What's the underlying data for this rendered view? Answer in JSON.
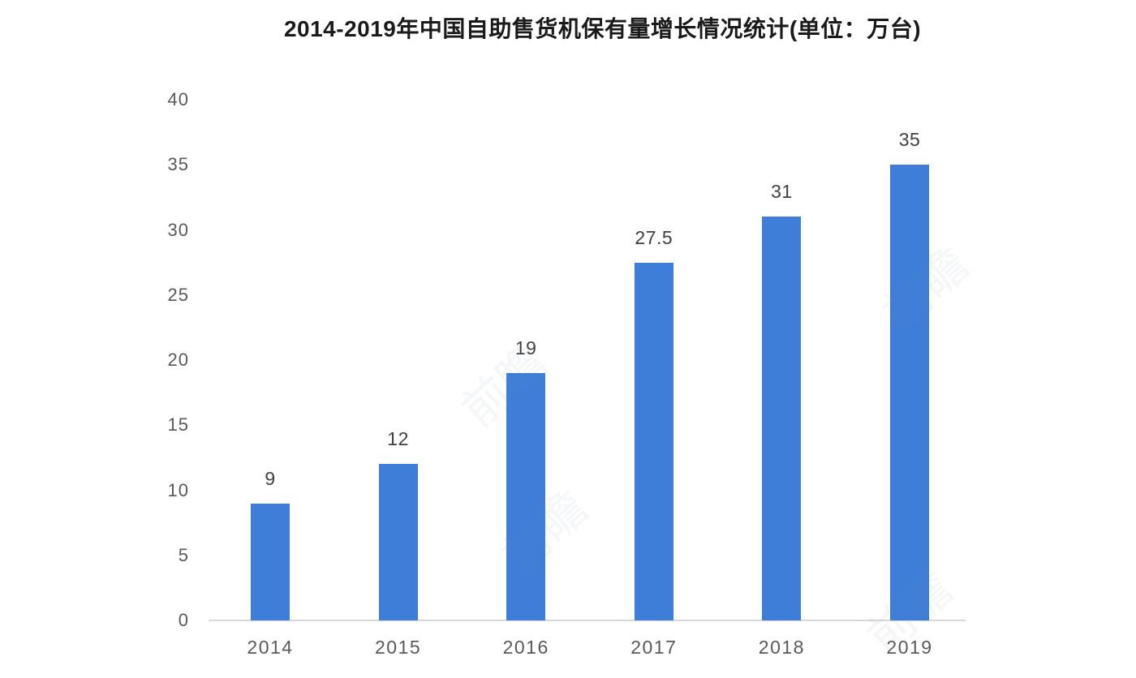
{
  "chart_data": {
    "type": "bar",
    "title": "2014-2019年中国自助售货机保有量增长情况统计(单位：万台)",
    "categories": [
      "2014",
      "2015",
      "2016",
      "2017",
      "2018",
      "2019"
    ],
    "values": [
      9,
      12,
      19,
      27.5,
      31,
      35
    ],
    "value_labels": [
      "9",
      "12",
      "19",
      "27.5",
      "31",
      "35"
    ],
    "xlabel": "",
    "ylabel": "",
    "unit": "万台",
    "ylim": [
      0,
      40
    ],
    "yticks": [
      0,
      5,
      10,
      15,
      20,
      25,
      30,
      35,
      40
    ],
    "grid": false,
    "legend": false,
    "colors": {
      "bar": "#3e7ed8",
      "axis_line": "#d9d9d9",
      "tick_label": "#595959",
      "value_label": "#404040",
      "title": "#1a1a1a",
      "background": "#ffffff"
    }
  },
  "watermark": {
    "text": "前瞻"
  }
}
